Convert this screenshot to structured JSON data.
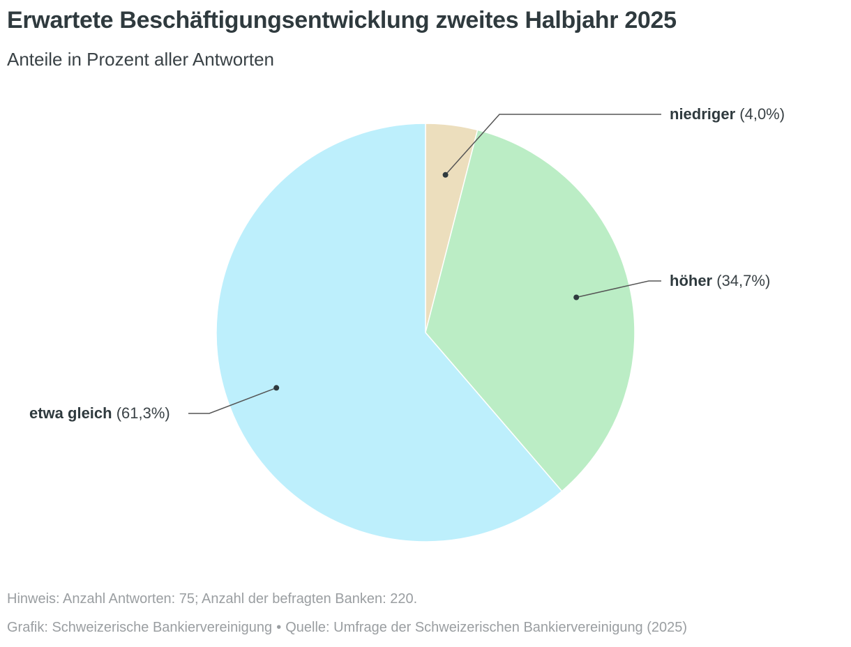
{
  "header": {
    "title": "Erwartete Beschäftigungsentwicklung zweites Halbjahr 2025",
    "subtitle": "Anteile in Prozent aller Antworten"
  },
  "chart_data": {
    "type": "pie",
    "title": "Erwartete Beschäftigungsentwicklung zweites Halbjahr 2025",
    "subtitle": "Anteile in Prozent aller Antworten",
    "start_angle": "12 o'clock",
    "direction": "clockwise",
    "slices": [
      {
        "name": "niedriger",
        "value": 4.0,
        "label_pct": "(4,0%)",
        "color": "#ecdebd"
      },
      {
        "name": "höher",
        "value": 34.7,
        "label_pct": "(34,7%)",
        "color": "#bbedc5"
      },
      {
        "name": "etwa gleich",
        "value": 61.3,
        "label_pct": "(61,3%)",
        "color": "#bdeffc"
      }
    ]
  },
  "footer": {
    "note": "Hinweis: Anzahl Antworten: 75; Anzahl der befragten Banken: 220.",
    "credit": "Grafik: Schweizerische Bankiervereinigung",
    "separator": "•",
    "source": "Quelle: Umfrage der Schweizerischen Bankiervereinigung (2025)"
  },
  "colors": {
    "text": "#2f3a3e",
    "footer_text": "#9a9ea1",
    "leader_line": "#555555"
  }
}
